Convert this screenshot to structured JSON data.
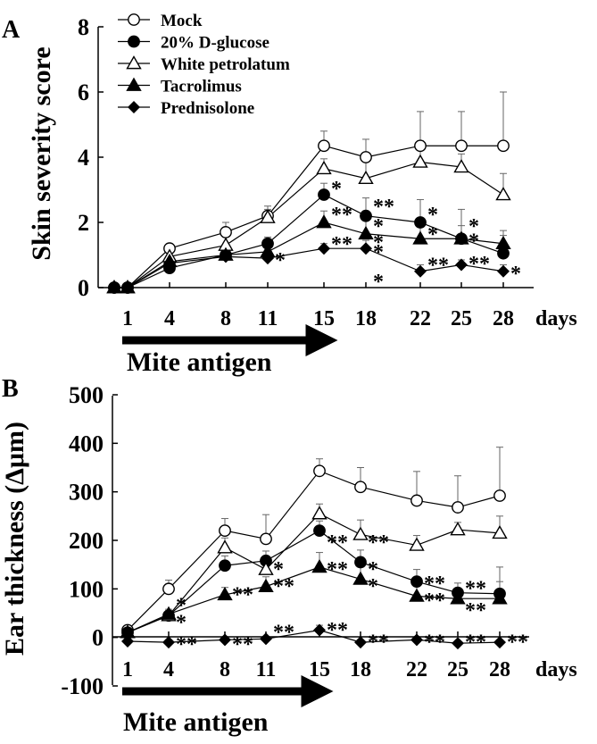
{
  "chart_data": [
    {
      "panel": "A",
      "type": "line",
      "ylabel": "Skin severity score",
      "xlabel": "days",
      "ylim": [
        0,
        8
      ],
      "yticks": [
        0,
        2,
        4,
        6,
        8
      ],
      "x": [
        1,
        4,
        8,
        11,
        15,
        18,
        22,
        25,
        28
      ],
      "x_label_values": [
        "1",
        "4",
        "8",
        "11",
        "15",
        "18",
        "22",
        "25",
        "28"
      ],
      "legend_position": "top-left",
      "series": [
        {
          "name": "Mock",
          "marker": "circle-open",
          "x": [
            0,
            1,
            4,
            8,
            11,
            15,
            18,
            22,
            25,
            28
          ],
          "values": [
            0,
            0,
            1.2,
            1.7,
            2.2,
            4.35,
            4.0,
            4.35,
            4.35,
            4.35
          ],
          "errors": [
            0,
            0,
            0.1,
            0.3,
            0.3,
            0.45,
            0.55,
            1.05,
            1.05,
            1.65
          ]
        },
        {
          "name": "20% D-glucose",
          "marker": "circle-filled",
          "x": [
            0,
            1,
            4,
            8,
            11,
            15,
            18,
            22,
            25,
            28
          ],
          "values": [
            0,
            0,
            0.6,
            1.0,
            1.35,
            2.85,
            2.2,
            2.0,
            1.5,
            1.05
          ],
          "errors": [
            0,
            0,
            0.2,
            0.2,
            0.2,
            0.35,
            0.55,
            0.7,
            0.9,
            0.55
          ]
        },
        {
          "name": "White petrolatum",
          "marker": "triangle-open",
          "x": [
            0,
            1,
            4,
            8,
            11,
            15,
            18,
            22,
            25,
            28
          ],
          "values": [
            0,
            0,
            0.95,
            1.3,
            2.15,
            3.65,
            3.35,
            3.85,
            3.7,
            2.85
          ],
          "errors": [
            0,
            0,
            0.15,
            0.25,
            0.25,
            0.3,
            0.55,
            0.65,
            0.4,
            0.65
          ]
        },
        {
          "name": "Tacrolimus",
          "marker": "triangle-filled",
          "x": [
            0,
            1,
            4,
            8,
            11,
            15,
            18,
            22,
            25,
            28
          ],
          "values": [
            0,
            0,
            0.8,
            1.0,
            1.1,
            2.0,
            1.65,
            1.5,
            1.5,
            1.35
          ],
          "errors": [
            0,
            0,
            0.15,
            0.15,
            0.25,
            0.35,
            0.5,
            0.5,
            0.4,
            0.4
          ]
        },
        {
          "name": "Prednisolone",
          "marker": "diamond-filled",
          "x": [
            0,
            1,
            4,
            8,
            11,
            15,
            18,
            22,
            25,
            28
          ],
          "values": [
            0,
            0,
            0.75,
            0.95,
            0.9,
            1.2,
            1.2,
            0.5,
            0.7,
            0.5
          ],
          "errors": [
            0,
            0,
            0.15,
            0.15,
            0.2,
            0.15,
            0.25,
            0.2,
            0.15,
            0.2
          ]
        }
      ],
      "significance_marks": [
        {
          "x": 11,
          "y": 0.9,
          "text": "*"
        },
        {
          "x": 15,
          "y": 3.1,
          "text": "*"
        },
        {
          "x": 15,
          "y": 2.3,
          "text": "**"
        },
        {
          "x": 15,
          "y": 1.4,
          "text": "**"
        },
        {
          "x": 18,
          "y": 2.55,
          "text": "**"
        },
        {
          "x": 18,
          "y": 1.95,
          "text": "*"
        },
        {
          "x": 18,
          "y": 1.45,
          "text": "*"
        },
        {
          "x": 18,
          "y": 1.15,
          "text": "*"
        },
        {
          "x": 18,
          "y": 0.25,
          "text": "*"
        },
        {
          "x": 22,
          "y": 2.3,
          "text": "*"
        },
        {
          "x": 22,
          "y": 1.7,
          "text": "*"
        },
        {
          "x": 22,
          "y": 0.75,
          "text": "**"
        },
        {
          "x": 25,
          "y": 1.95,
          "text": "*"
        },
        {
          "x": 25,
          "y": 1.5,
          "text": "*"
        },
        {
          "x": 25,
          "y": 0.8,
          "text": "**"
        },
        {
          "x": 28,
          "y": 0.5,
          "text": "*"
        }
      ],
      "annotation": "Mite antigen",
      "annotation_x_range": [
        1,
        15
      ]
    },
    {
      "panel": "B",
      "type": "line",
      "ylabel": "Ear thickness (Δμm)",
      "xlabel": "days",
      "ylim": [
        -100,
        500
      ],
      "yticks": [
        -100,
        0,
        100,
        200,
        300,
        400,
        500
      ],
      "x": [
        1,
        4,
        8,
        11,
        15,
        18,
        22,
        25,
        28
      ],
      "x_label_values": [
        "1",
        "4",
        "8",
        "11",
        "15",
        "18",
        "22",
        "25",
        "28"
      ],
      "series": [
        {
          "name": "Mock",
          "marker": "circle-open",
          "x": [
            1,
            4,
            8,
            11,
            15,
            18,
            22,
            25,
            28
          ],
          "values": [
            15,
            100,
            220,
            203,
            343,
            310,
            282,
            268,
            292
          ],
          "errors": [
            8,
            18,
            25,
            50,
            25,
            40,
            60,
            65,
            100
          ]
        },
        {
          "name": "20% D-glucose",
          "marker": "circle-filled",
          "x": [
            1,
            4,
            8,
            11,
            15,
            18,
            22,
            25,
            28
          ],
          "values": [
            10,
            45,
            148,
            158,
            220,
            155,
            115,
            92,
            90
          ],
          "errors": [
            5,
            10,
            20,
            20,
            20,
            25,
            25,
            20,
            55
          ]
        },
        {
          "name": "White petrolatum",
          "marker": "triangle-open",
          "x": [
            1,
            4,
            8,
            11,
            15,
            18,
            22,
            25,
            28
          ],
          "values": [
            10,
            45,
            185,
            140,
            255,
            212,
            190,
            222,
            215
          ],
          "errors": [
            5,
            10,
            20,
            20,
            20,
            30,
            20,
            15,
            35
          ]
        },
        {
          "name": "Tacrolimus",
          "marker": "triangle-filled",
          "x": [
            1,
            4,
            8,
            11,
            15,
            18,
            22,
            25,
            28
          ],
          "values": [
            10,
            48,
            88,
            105,
            145,
            120,
            85,
            80,
            80
          ],
          "errors": [
            5,
            10,
            15,
            20,
            30,
            30,
            20,
            20,
            35
          ]
        },
        {
          "name": "Prednisolone",
          "marker": "diamond-filled",
          "x": [
            1,
            4,
            8,
            11,
            15,
            18,
            22,
            25,
            28
          ],
          "values": [
            -8,
            -10,
            -5,
            -3,
            15,
            -10,
            -5,
            -12,
            -10
          ],
          "errors": [
            5,
            5,
            5,
            5,
            10,
            5,
            5,
            5,
            5
          ]
        }
      ],
      "significance_marks": [
        {
          "x": 4,
          "y": 70,
          "text": "*"
        },
        {
          "x": 4,
          "y": 35,
          "text": "*"
        },
        {
          "x": 4,
          "y": -10,
          "text": "**"
        },
        {
          "x": 8,
          "y": 92,
          "text": "**"
        },
        {
          "x": 8,
          "y": -10,
          "text": "**"
        },
        {
          "x": 11,
          "y": 110,
          "text": "**"
        },
        {
          "x": 11,
          "y": 145,
          "text": "*"
        },
        {
          "x": 11,
          "y": 15,
          "text": "**"
        },
        {
          "x": 15,
          "y": 200,
          "text": "**"
        },
        {
          "x": 15,
          "y": 145,
          "text": "**"
        },
        {
          "x": 15,
          "y": 20,
          "text": "**"
        },
        {
          "x": 18,
          "y": 200,
          "text": "**"
        },
        {
          "x": 18,
          "y": 145,
          "text": "*"
        },
        {
          "x": 18,
          "y": 110,
          "text": "*"
        },
        {
          "x": 18,
          "y": -5,
          "text": "**"
        },
        {
          "x": 22,
          "y": 115,
          "text": "**"
        },
        {
          "x": 22,
          "y": 80,
          "text": "**"
        },
        {
          "x": 22,
          "y": -5,
          "text": "**"
        },
        {
          "x": 25,
          "y": 105,
          "text": "**"
        },
        {
          "x": 25,
          "y": 60,
          "text": "**"
        },
        {
          "x": 25,
          "y": -5,
          "text": "**"
        },
        {
          "x": 28,
          "y": -5,
          "text": "**"
        }
      ],
      "annotation": "Mite antigen",
      "annotation_x_range": [
        1,
        15
      ]
    }
  ]
}
